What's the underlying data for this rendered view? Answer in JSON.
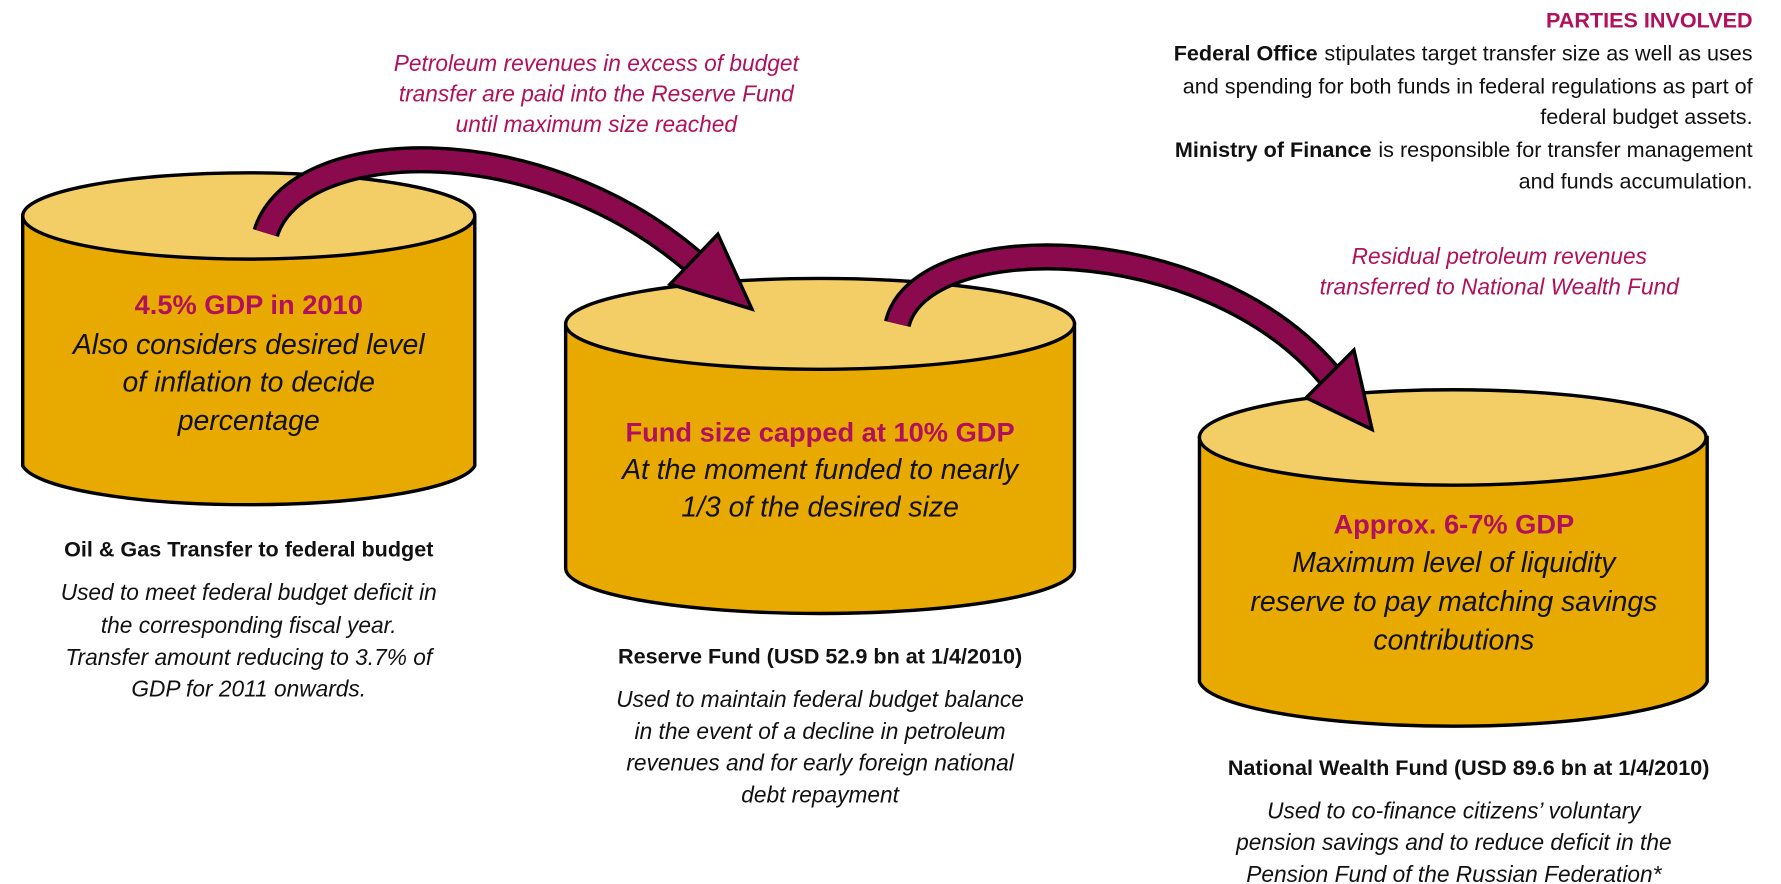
{
  "parties": {
    "title": "PARTIES INVOLVED",
    "entries": [
      {
        "name": "Federal Office",
        "lines": [
          "stipulates target transfer size as well as uses",
          "and spending for both funds in federal regulations as part of",
          "federal budget assets."
        ]
      },
      {
        "name": "Ministry of Finance",
        "lines": [
          "is responsible for transfer management",
          "and funds accumulation."
        ]
      }
    ]
  },
  "annotations": [
    {
      "lines": [
        "Petroleum revenues in excess of budget",
        "transfer are paid into the Reserve Fund",
        "until maximum size reached"
      ]
    },
    {
      "lines": [
        "Residual petroleum revenues",
        "transferred to National Wealth Fund"
      ]
    }
  ],
  "funds": [
    {
      "headline": "4.5% GDP in 2010",
      "body": [
        "Also considers desired level",
        "of inflation to decide",
        "percentage"
      ],
      "name": "Oil & Gas Transfer to federal budget",
      "description": [
        "Used to meet federal budget deficit in",
        "the corresponding fiscal year.",
        "Transfer amount reducing to 3.7% of",
        "GDP for 2011 onwards."
      ]
    },
    {
      "headline": "Fund size capped at 10% GDP",
      "body": [
        "At the moment funded to nearly",
        "1/3 of the desired size"
      ],
      "name": "Reserve Fund (USD 52.9 bn at 1/4/2010)",
      "description": [
        "Used to maintain federal budget balance",
        "in the event of a decline in petroleum",
        "revenues and for early foreign national",
        "debt repayment"
      ]
    },
    {
      "headline": "Approx. 6-7% GDP",
      "body": [
        "Maximum level of liquidity",
        "reserve to pay matching savings",
        "contributions"
      ],
      "name": "National Wealth Fund (USD 89.6 bn at 1/4/2010)",
      "description": [
        "Used to co-finance citizens’ voluntary",
        "pension savings and to reduce deficit in the",
        "Pension Fund of the Russian Federation*"
      ]
    }
  ]
}
